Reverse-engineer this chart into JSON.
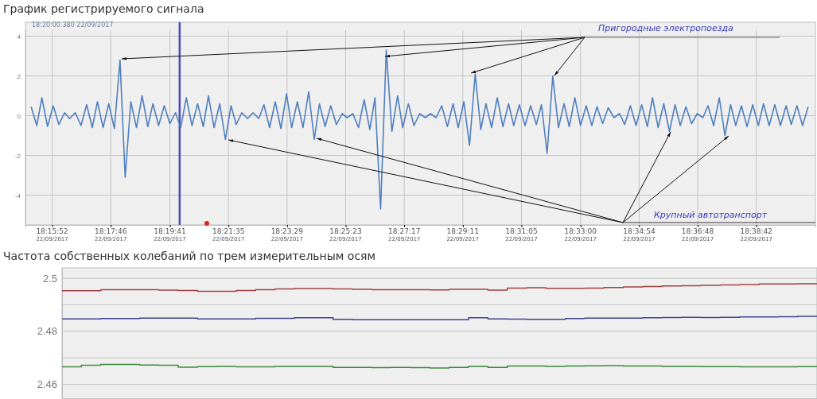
{
  "chart_data": [
    {
      "type": "line",
      "title": "График регистрируемого сигнала",
      "annotations": [
        "18:20:00.380 22/09/2017",
        "Пригородные электропоезда",
        "Крупный автотранспорт"
      ],
      "x": [
        "2017-09-22T18:15:11",
        "2017-09-22T18:15:22",
        "2017-09-22T18:15:32",
        "2017-09-22T18:15:43",
        "2017-09-22T18:15:54",
        "2017-09-22T18:16:05",
        "2017-09-22T18:16:16",
        "2017-09-22T18:16:26",
        "2017-09-22T18:16:37",
        "2017-09-22T18:16:48",
        "2017-09-22T18:16:59",
        "2017-09-22T18:17:10",
        "2017-09-22T18:17:20",
        "2017-09-22T18:17:31",
        "2017-09-22T18:17:42",
        "2017-09-22T18:17:53",
        "2017-09-22T18:18:04",
        "2017-09-22T18:18:14",
        "2017-09-22T18:18:25",
        "2017-09-22T18:18:36",
        "2017-09-22T18:18:47",
        "2017-09-22T18:18:58",
        "2017-09-22T18:19:08",
        "2017-09-22T18:19:19",
        "2017-09-22T18:19:30",
        "2017-09-22T18:19:41",
        "2017-09-22T18:19:52",
        "2017-09-22T18:20:02",
        "2017-09-22T18:20:13",
        "2017-09-22T18:20:24",
        "2017-09-22T18:20:35",
        "2017-09-22T18:20:46",
        "2017-09-22T18:20:56",
        "2017-09-22T18:21:07",
        "2017-09-22T18:21:18",
        "2017-09-22T18:21:29",
        "2017-09-22T18:21:40",
        "2017-09-22T18:21:50",
        "2017-09-22T18:22:01",
        "2017-09-22T18:22:12",
        "2017-09-22T18:22:23",
        "2017-09-22T18:22:34",
        "2017-09-22T18:22:44",
        "2017-09-22T18:22:55",
        "2017-09-22T18:23:06",
        "2017-09-22T18:23:17",
        "2017-09-22T18:23:28",
        "2017-09-22T18:23:38",
        "2017-09-22T18:23:49",
        "2017-09-22T18:24:00",
        "2017-09-22T18:24:11",
        "2017-09-22T18:24:22",
        "2017-09-22T18:24:32",
        "2017-09-22T18:24:43",
        "2017-09-22T18:24:54",
        "2017-09-22T18:25:05",
        "2017-09-22T18:25:16",
        "2017-09-22T18:25:26",
        "2017-09-22T18:25:37",
        "2017-09-22T18:25:48",
        "2017-09-22T18:25:59",
        "2017-09-22T18:26:10",
        "2017-09-22T18:26:20",
        "2017-09-22T18:26:31",
        "2017-09-22T18:26:42",
        "2017-09-22T18:26:53",
        "2017-09-22T18:27:04",
        "2017-09-22T18:27:14",
        "2017-09-22T18:27:25",
        "2017-09-22T18:27:36",
        "2017-09-22T18:27:47",
        "2017-09-22T18:27:58",
        "2017-09-22T18:28:08",
        "2017-09-22T18:28:19",
        "2017-09-22T18:28:30",
        "2017-09-22T18:28:41",
        "2017-09-22T18:28:52",
        "2017-09-22T18:29:02",
        "2017-09-22T18:29:13",
        "2017-09-22T18:29:24",
        "2017-09-22T18:29:35",
        "2017-09-22T18:29:46",
        "2017-09-22T18:29:56",
        "2017-09-22T18:30:07",
        "2017-09-22T18:30:18",
        "2017-09-22T18:30:29",
        "2017-09-22T18:30:40",
        "2017-09-22T18:30:50",
        "2017-09-22T18:31:01",
        "2017-09-22T18:31:12",
        "2017-09-22T18:31:23",
        "2017-09-22T18:31:34",
        "2017-09-22T18:31:44",
        "2017-09-22T18:31:55",
        "2017-09-22T18:32:06",
        "2017-09-22T18:32:17",
        "2017-09-22T18:32:28",
        "2017-09-22T18:32:38",
        "2017-09-22T18:32:49",
        "2017-09-22T18:33:00",
        "2017-09-22T18:33:11",
        "2017-09-22T18:33:22",
        "2017-09-22T18:33:32",
        "2017-09-22T18:33:43",
        "2017-09-22T18:33:54",
        "2017-09-22T18:34:05",
        "2017-09-22T18:34:16",
        "2017-09-22T18:34:26",
        "2017-09-22T18:34:37",
        "2017-09-22T18:34:48",
        "2017-09-22T18:34:59",
        "2017-09-22T18:35:10",
        "2017-09-22T18:35:20",
        "2017-09-22T18:35:31",
        "2017-09-22T18:35:42",
        "2017-09-22T18:35:53",
        "2017-09-22T18:36:04",
        "2017-09-22T18:36:14",
        "2017-09-22T18:36:25",
        "2017-09-22T18:36:36",
        "2017-09-22T18:36:47",
        "2017-09-22T18:36:58",
        "2017-09-22T18:37:08",
        "2017-09-22T18:37:19",
        "2017-09-22T18:37:30",
        "2017-09-22T18:37:41",
        "2017-09-22T18:37:52",
        "2017-09-22T18:38:02",
        "2017-09-22T18:38:13",
        "2017-09-22T18:38:24",
        "2017-09-22T18:38:35",
        "2017-09-22T18:38:46",
        "2017-09-22T18:38:56",
        "2017-09-22T18:39:07",
        "2017-09-22T18:39:18",
        "2017-09-22T18:39:29",
        "2017-09-22T18:39:40",
        "2017-09-22T18:39:50",
        "2017-09-22T18:40:01",
        "2017-09-22T18:40:12",
        "2017-09-22T18:40:23"
      ],
      "series": [
        {
          "color": "#4f7fbf",
          "values": [
            0.45,
            -0.5,
            0.9,
            -0.55,
            0.5,
            -0.45,
            0.15,
            -0.15,
            0.15,
            -0.5,
            0.55,
            -0.6,
            0.7,
            -0.6,
            0.6,
            -0.65,
            2.8,
            -3.1,
            0.7,
            -0.6,
            1.0,
            -0.55,
            0.6,
            -0.5,
            0.5,
            -0.4,
            0.15,
            -0.6,
            0.9,
            -0.5,
            0.6,
            -0.55,
            1.0,
            -0.6,
            0.6,
            -1.2,
            0.5,
            -0.45,
            0.15,
            -0.15,
            0.15,
            -0.15,
            0.55,
            -0.6,
            0.7,
            -0.65,
            1.1,
            -0.6,
            0.7,
            -0.6,
            1.2,
            -1.2,
            0.6,
            -0.55,
            0.5,
            -0.45,
            0.1,
            -0.1,
            0.1,
            -0.6,
            0.8,
            -0.7,
            0.9,
            -4.7,
            3.3,
            -0.8,
            1.0,
            -0.6,
            0.6,
            -0.5,
            0.1,
            -0.1,
            0.1,
            -0.1,
            0.5,
            -0.55,
            0.6,
            -0.6,
            0.7,
            -1.5,
            2.1,
            -0.7,
            0.6,
            -0.6,
            0.9,
            -0.55,
            0.6,
            -0.5,
            0.55,
            -0.5,
            0.5,
            -0.45,
            0.55,
            -1.9,
            2.0,
            -0.6,
            0.6,
            -0.55,
            0.9,
            -0.5,
            0.5,
            -0.5,
            0.45,
            -0.4,
            0.4,
            -0.1,
            0.1,
            -0.45,
            0.5,
            -0.5,
            0.55,
            -0.55,
            0.9,
            -0.6,
            0.6,
            -0.8,
            0.55,
            -0.5,
            0.45,
            -0.4,
            0.1,
            -0.1,
            0.5,
            -0.5,
            0.9,
            -1.0,
            0.55,
            -0.5,
            0.5,
            -0.55,
            0.55,
            -0.5,
            0.6,
            -0.5,
            0.55,
            -0.5,
            0.5,
            -0.45,
            0.5,
            -0.5,
            0.45
          ]
        }
      ],
      "xlim": [
        "2017-09-22T18:15:00",
        "2017-09-22T18:40:37"
      ],
      "xticks": [
        {
          "value": "2017-09-22T18:15:52",
          "label": "18:15:52\n22/09/2017"
        },
        {
          "value": "2017-09-22T18:17:46",
          "label": "18:17:46\n22/09/2017"
        },
        {
          "value": "2017-09-22T18:19:41",
          "label": "18:19:41\n22/09/2017"
        },
        {
          "value": "2017-09-22T18:21:35",
          "label": "18:21:35\n22/09/2017"
        },
        {
          "value": "2017-09-22T18:23:29",
          "label": "18:23:29\n22/09/2017"
        },
        {
          "value": "2017-09-22T18:25:23",
          "label": "18:25:23\n22/09/2017"
        },
        {
          "value": "2017-09-22T18:27:17",
          "label": "18:27:17\n22/09/2017"
        },
        {
          "value": "2017-09-22T18:29:11",
          "label": "18:29:11\n22/09/2017"
        },
        {
          "value": "2017-09-22T18:31:05",
          "label": "18:31:05\n22/09/2017"
        },
        {
          "value": "2017-09-22T18:33:00",
          "label": "18:33:00\n22/09/2017"
        },
        {
          "value": "2017-09-22T18:34:54",
          "label": "18:34:54\n22/09/2017"
        },
        {
          "value": "2017-09-22T18:36:48",
          "label": "18:36:48\n22/09/2017"
        },
        {
          "value": "2017-09-22T18:38:42",
          "label": "18:38:42\n22/09/2017"
        }
      ],
      "ylim": [
        -5.5,
        4.3
      ],
      "yticks": [
        -4,
        -2,
        0,
        2,
        4
      ],
      "grid": true,
      "ref_lines": [
        {
          "axis": "x",
          "value": "2017-09-22T18:20:00",
          "color": "#4a4ab8"
        }
      ]
    },
    {
      "type": "step",
      "title": "Частота собственных колебаний по трем измерительным осям",
      "categories": [
        null,
        null,
        null,
        null,
        null,
        null,
        null,
        null,
        null,
        null,
        null,
        null,
        null,
        null,
        null,
        null,
        null,
        null,
        null,
        null,
        null,
        null,
        null,
        null,
        null,
        null,
        null,
        null,
        null,
        null,
        null,
        null,
        null,
        null,
        null,
        null,
        null,
        null,
        null,
        null
      ],
      "series": [
        {
          "color": "#a04040",
          "values": [
            2.4953,
            2.4953,
            2.4957,
            2.4957,
            2.4957,
            2.4955,
            2.4954,
            2.4951,
            2.4951,
            2.4954,
            2.4957,
            2.496,
            2.4961,
            2.4961,
            2.496,
            2.4958,
            2.4957,
            2.4957,
            2.4957,
            2.4956,
            2.4958,
            2.4958,
            2.4955,
            2.4963,
            2.4964,
            2.4962,
            2.4962,
            2.4963,
            2.4965,
            2.4967,
            2.4969,
            2.4971,
            2.4972,
            2.4973,
            2.4975,
            2.4976,
            2.4978,
            2.4978,
            2.4979,
            2.4979
          ]
        },
        {
          "color": "#404090",
          "values": [
            2.4847,
            2.4847,
            2.4848,
            2.4848,
            2.485,
            2.485,
            2.485,
            2.4847,
            2.4847,
            2.4847,
            2.4849,
            2.4849,
            2.4851,
            2.4851,
            2.4845,
            2.4844,
            2.4844,
            2.4844,
            2.4844,
            2.4844,
            2.4844,
            2.4851,
            2.4847,
            2.4846,
            2.4845,
            2.4845,
            2.4848,
            2.485,
            2.485,
            2.485,
            2.4851,
            2.4852,
            2.4853,
            2.4852,
            2.4853,
            2.4854,
            2.4854,
            2.4855,
            2.4856,
            2.4856
          ]
        },
        {
          "color": "#3a8a3a",
          "values": [
            2.4666,
            2.4672,
            2.4675,
            2.4675,
            2.4673,
            2.4672,
            2.4665,
            2.4667,
            2.4668,
            2.4666,
            2.4666,
            2.4668,
            2.4668,
            2.4668,
            2.4664,
            2.4664,
            2.4663,
            2.4664,
            2.4663,
            2.4662,
            2.4664,
            2.4668,
            2.4664,
            2.4669,
            2.4669,
            2.4668,
            2.4669,
            2.467,
            2.4671,
            2.4669,
            2.4669,
            2.4668,
            2.4668,
            2.4667,
            2.4667,
            2.4666,
            2.4666,
            2.4666,
            2.4667,
            2.4667
          ]
        }
      ],
      "ylim": [
        2.4545,
        2.5039
      ],
      "yticks": [
        2.46,
        {
          "value": 2.47,
          "label": null
        },
        2.48,
        {
          "value": 2.49,
          "label": null
        },
        2.5
      ],
      "grid": true,
      "tick_labels": "y"
    }
  ]
}
